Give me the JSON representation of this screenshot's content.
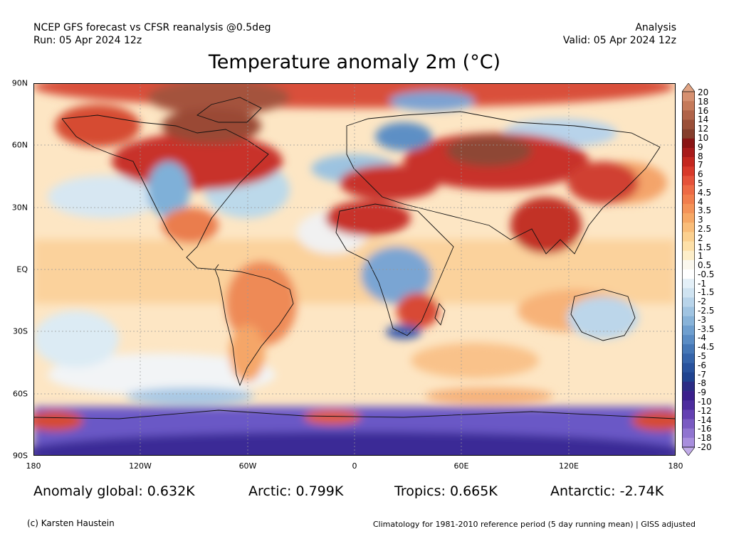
{
  "header": {
    "left_line1": "NCEP GFS forecast vs CFSR reanalysis @0.5deg",
    "left_line2": "Run: 05 Apr 2024 12z",
    "right_line1": "Analysis",
    "right_line2": "Valid: 05 Apr 2024 12z"
  },
  "title": "Temperature anomaly 2m (°C)",
  "axes": {
    "lat_labels": [
      "90N",
      "60N",
      "30N",
      "EQ",
      "30S",
      "60S",
      "90S"
    ],
    "lon_labels": [
      "180",
      "120W",
      "60W",
      "0",
      "60E",
      "120E",
      "180"
    ]
  },
  "colorbar": {
    "labels": [
      "20",
      "18",
      "16",
      "14",
      "12",
      "10",
      "9",
      "8",
      "7",
      "6",
      "5",
      "4.5",
      "4",
      "3.5",
      "3",
      "2.5",
      "2",
      "1.5",
      "1",
      "0.5",
      "-0.5",
      "-1",
      "-1.5",
      "-2",
      "-2.5",
      "-3",
      "-3.5",
      "-4",
      "-4.5",
      "-5",
      "-6",
      "-7",
      "-8",
      "-9",
      "-10",
      "-12",
      "-14",
      "-16",
      "-18",
      "-20"
    ]
  },
  "stats": {
    "global": "Anomaly global: 0.632K",
    "arctic": "Arctic: 0.799K",
    "tropics": "Tropics: 0.665K",
    "antarctic": "Antarctic: -2.74K"
  },
  "footer": {
    "credit": "(c) Karsten Haustein",
    "footnote": "Climatology for 1981-2010 reference period (5 day running mean) | GISS adjusted"
  }
}
